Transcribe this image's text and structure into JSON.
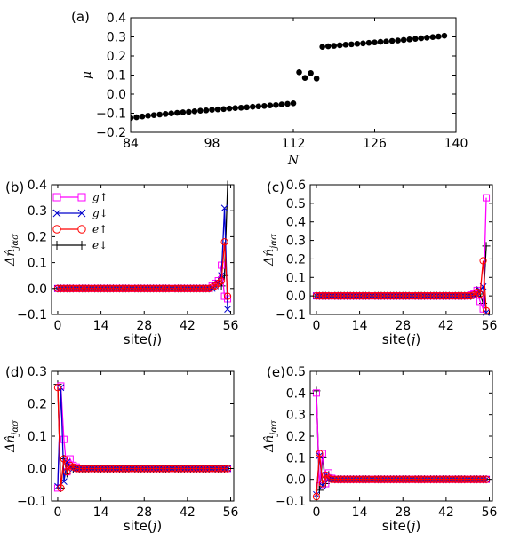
{
  "chart_data": [
    {
      "panel": "(a)",
      "type": "scatter",
      "xlabel": "N",
      "ylabel": "μ",
      "xlim": [
        84,
        140
      ],
      "ylim": [
        -0.2,
        0.4
      ],
      "xticks": [
        "84",
        "98",
        "112",
        "126",
        "140"
      ],
      "yticks": [
        "−0.2",
        "−0.1",
        "0.0",
        "0.1",
        "0.2",
        "0.3",
        "0.4"
      ],
      "x": [
        84,
        85,
        86,
        87,
        88,
        89,
        90,
        91,
        92,
        93,
        94,
        95,
        96,
        97,
        98,
        99,
        100,
        101,
        102,
        103,
        104,
        105,
        106,
        107,
        108,
        109,
        110,
        111,
        112,
        113,
        114,
        115,
        116,
        117,
        118,
        119,
        120,
        121,
        122,
        123,
        124,
        125,
        126,
        127,
        128,
        129,
        130,
        131,
        132,
        133,
        134,
        135,
        136,
        137,
        138
      ],
      "y": [
        -0.125,
        -0.121,
        -0.117,
        -0.113,
        -0.11,
        -0.107,
        -0.104,
        -0.101,
        -0.098,
        -0.095,
        -0.093,
        -0.09,
        -0.087,
        -0.085,
        -0.082,
        -0.08,
        -0.078,
        -0.075,
        -0.073,
        -0.071,
        -0.069,
        -0.066,
        -0.064,
        -0.062,
        -0.059,
        -0.057,
        -0.054,
        -0.051,
        -0.048,
        0.115,
        0.085,
        0.11,
        0.082,
        0.248,
        0.251,
        0.253,
        0.256,
        0.259,
        0.261,
        0.264,
        0.266,
        0.269,
        0.271,
        0.274,
        0.276,
        0.279,
        0.281,
        0.284,
        0.287,
        0.29,
        0.293,
        0.296,
        0.299,
        0.302,
        0.306
      ],
      "grid": false
    },
    {
      "panel": "(b)",
      "type": "line",
      "xlabel": "site(j)",
      "ylabel": "Δn̂_jασ",
      "xlim": [
        -2,
        57
      ],
      "ylim": [
        -0.1,
        0.4
      ],
      "xticks": [
        "0",
        "14",
        "28",
        "42",
        "56"
      ],
      "yticks": [
        "−0.1",
        "0.0",
        "0.1",
        "0.2",
        "0.3",
        "0.4"
      ],
      "legend": "top-left",
      "series": [
        {
          "name": "g↑",
          "marker": "square",
          "color": "#ff00ff",
          "points": [
            [
              50,
              0.01
            ],
            [
              51,
              0.02
            ],
            [
              52,
              0.03
            ],
            [
              53,
              0.09
            ],
            [
              54,
              -0.03
            ],
            [
              55,
              -0.04
            ],
            [
              56,
              0.12
            ]
          ]
        },
        {
          "name": "g↓",
          "marker": "x",
          "color": "#0000cc",
          "points": [
            [
              50,
              0.0
            ],
            [
              51,
              0.01
            ],
            [
              52,
              0.02
            ],
            [
              53,
              0.05
            ],
            [
              54,
              0.31
            ],
            [
              55,
              -0.08
            ]
          ]
        },
        {
          "name": "e↑",
          "marker": "circle",
          "color": "#ff0000",
          "points": [
            [
              50,
              0.005
            ],
            [
              51,
              0.01
            ],
            [
              52,
              0.02
            ],
            [
              53,
              0.03
            ],
            [
              54,
              0.18
            ],
            [
              55,
              -0.03
            ]
          ]
        },
        {
          "name": "e↓",
          "marker": "plus",
          "color": "#000000",
          "points": [
            [
              50,
              0.0
            ],
            [
              51,
              0.01
            ],
            [
              52,
              0.03
            ],
            [
              53,
              0.01
            ],
            [
              54,
              0.05
            ],
            [
              55,
              0.4
            ]
          ]
        }
      ]
    },
    {
      "panel": "(c)",
      "type": "line",
      "xlabel": "site(j)",
      "ylabel": "Δn̂_jασ",
      "xlim": [
        -2,
        57
      ],
      "ylim": [
        -0.1,
        0.6
      ],
      "xticks": [
        "0",
        "14",
        "28",
        "42",
        "56"
      ],
      "yticks": [
        "−0.1",
        "0.0",
        "0.1",
        "0.2",
        "0.3",
        "0.4",
        "0.5",
        "0.6"
      ],
      "series": [
        {
          "name": "g↑",
          "marker": "square",
          "color": "#ff00ff",
          "points": [
            [
              50,
              0.005
            ],
            [
              51,
              0.01
            ],
            [
              52,
              0.03
            ],
            [
              53,
              -0.03
            ],
            [
              54,
              -0.07
            ],
            [
              55,
              0.53
            ]
          ]
        },
        {
          "name": "g↓",
          "marker": "x",
          "color": "#0000cc",
          "points": [
            [
              50,
              0.0
            ],
            [
              51,
              0.005
            ],
            [
              52,
              0.01
            ],
            [
              53,
              0.03
            ],
            [
              54,
              0.05
            ],
            [
              55,
              -0.09
            ]
          ]
        },
        {
          "name": "e↑",
          "marker": "circle",
          "color": "#ff0000",
          "points": [
            [
              50,
              0.0
            ],
            [
              51,
              0.005
            ],
            [
              52,
              0.02
            ],
            [
              53,
              0.01
            ],
            [
              54,
              0.19
            ],
            [
              55,
              -0.08
            ]
          ]
        },
        {
          "name": "e↓",
          "marker": "plus",
          "color": "#000000",
          "points": [
            [
              50,
              0.0
            ],
            [
              51,
              0.01
            ],
            [
              52,
              0.03
            ],
            [
              53,
              0.01
            ],
            [
              54,
              -0.04
            ],
            [
              55,
              0.27
            ]
          ]
        }
      ]
    },
    {
      "panel": "(d)",
      "type": "line",
      "xlabel": "site(j)",
      "ylabel": "Δn̂_jασ",
      "xlim": [
        -2,
        57
      ],
      "ylim": [
        -0.1,
        0.3
      ],
      "xticks": [
        "0",
        "14",
        "28",
        "42",
        "56"
      ],
      "yticks": [
        "−0.1",
        "0.0",
        "0.1",
        "0.2",
        "0.3"
      ],
      "series": [
        {
          "name": "g↑",
          "marker": "square",
          "color": "#ff00ff",
          "points": [
            [
              0,
              -0.06
            ],
            [
              1,
              0.255
            ],
            [
              2,
              0.09
            ],
            [
              3,
              -0.01
            ],
            [
              4,
              0.03
            ],
            [
              5,
              0.01
            ],
            [
              6,
              0.005
            ]
          ]
        },
        {
          "name": "g↓",
          "marker": "x",
          "color": "#0000cc",
          "points": [
            [
              0,
              -0.055
            ],
            [
              1,
              0.25
            ],
            [
              2,
              -0.04
            ],
            [
              3,
              0.02
            ],
            [
              4,
              0.005
            ]
          ]
        },
        {
          "name": "e↑",
          "marker": "circle",
          "color": "#ff0000",
          "points": [
            [
              0,
              0.25
            ],
            [
              1,
              -0.06
            ],
            [
              2,
              0.03
            ],
            [
              3,
              -0.01
            ],
            [
              4,
              0.01
            ],
            [
              5,
              0.005
            ]
          ]
        },
        {
          "name": "e↓",
          "marker": "plus",
          "color": "#000000",
          "points": [
            [
              0,
              0.26
            ],
            [
              1,
              -0.06
            ],
            [
              2,
              0.03
            ],
            [
              3,
              -0.015
            ],
            [
              4,
              0.01
            ],
            [
              5,
              0.0
            ]
          ]
        }
      ]
    },
    {
      "panel": "(e)",
      "type": "line",
      "xlabel": "site(j)",
      "ylabel": "Δn̂_jασ",
      "xlim": [
        -2,
        57
      ],
      "ylim": [
        -0.1,
        0.5
      ],
      "xticks": [
        "0",
        "14",
        "28",
        "42",
        "56"
      ],
      "yticks": [
        "−0.1",
        "0.0",
        "0.1",
        "0.2",
        "0.3",
        "0.4",
        "0.5"
      ],
      "series": [
        {
          "name": "g↑",
          "marker": "square",
          "color": "#ff00ff",
          "points": [
            [
              0,
              0.4
            ],
            [
              1,
              -0.03
            ],
            [
              2,
              0.12
            ],
            [
              3,
              -0.02
            ],
            [
              4,
              0.03
            ],
            [
              5,
              0.005
            ]
          ]
        },
        {
          "name": "g↓",
          "marker": "x",
          "color": "#0000cc",
          "points": [
            [
              0,
              -0.07
            ],
            [
              1,
              0.11
            ],
            [
              2,
              -0.03
            ],
            [
              3,
              0.02
            ],
            [
              4,
              0.0
            ]
          ]
        },
        {
          "name": "e↑",
          "marker": "circle",
          "color": "#ff0000",
          "points": [
            [
              0,
              -0.08
            ],
            [
              1,
              0.12
            ],
            [
              2,
              -0.02
            ],
            [
              3,
              0.02
            ],
            [
              4,
              0.005
            ]
          ]
        },
        {
          "name": "e↓",
          "marker": "plus",
          "color": "#000000",
          "points": [
            [
              0,
              0.41
            ],
            [
              1,
              -0.05
            ],
            [
              2,
              0.1
            ],
            [
              3,
              -0.02
            ],
            [
              4,
              0.02
            ],
            [
              5,
              0.0
            ]
          ]
        }
      ]
    }
  ]
}
